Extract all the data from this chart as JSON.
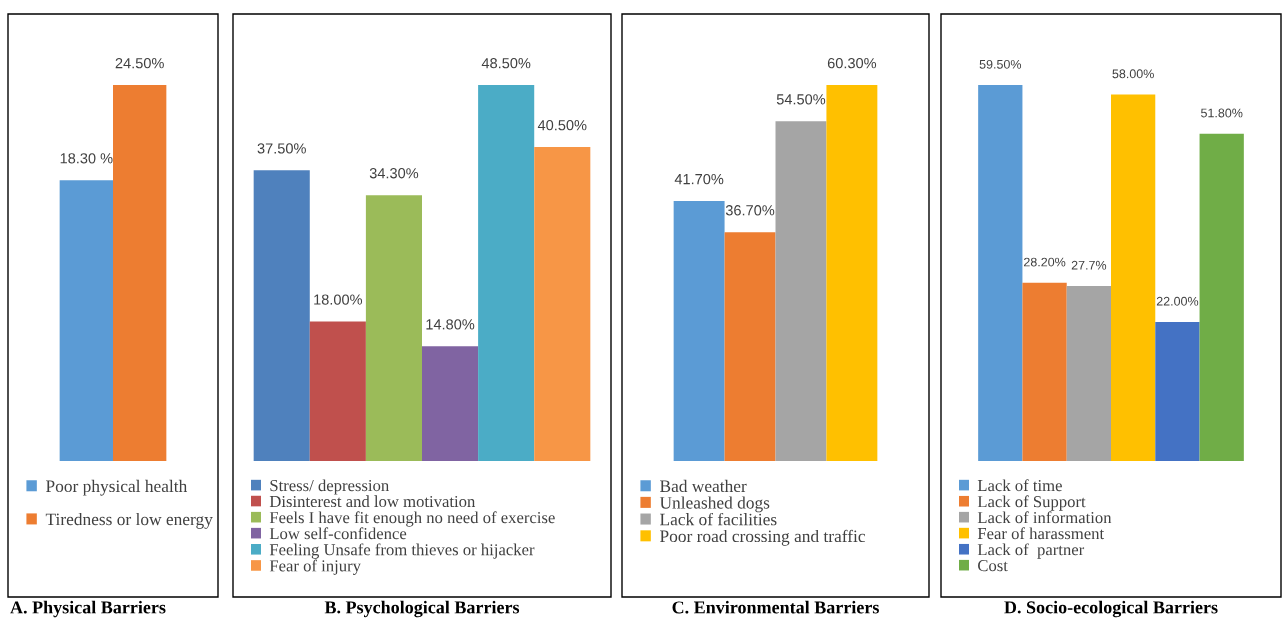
{
  "chart_data": [
    {
      "type": "bar",
      "title": "A. Physical Barriers",
      "categories": [
        null
      ],
      "legend": "bottom",
      "series": [
        {
          "name": "Poor physical health",
          "color": "#5b9bd5",
          "values": [
            18.3
          ],
          "value_labels": [
            "18.30 %"
          ]
        },
        {
          "name": "Tiredness or low energy",
          "color": "#ed7d31",
          "values": [
            24.5
          ],
          "value_labels": [
            "24.50%"
          ]
        }
      ]
    },
    {
      "type": "bar",
      "title": "B. Psychological Barriers",
      "categories": [
        null
      ],
      "legend": "bottom",
      "series": [
        {
          "name": "Stress/ depression",
          "color": "#4f81bd",
          "values": [
            37.5
          ],
          "value_labels": [
            "37.50%"
          ]
        },
        {
          "name": "Disinterest and low motivation",
          "color": "#c0504d",
          "values": [
            18.0
          ],
          "value_labels": [
            "18.00%"
          ]
        },
        {
          "name": "Feels I have fit enough no need of exercise",
          "color": "#9bbb59",
          "values": [
            34.3
          ],
          "value_labels": [
            "34.30%"
          ]
        },
        {
          "name": "Low self-confidence",
          "color": "#8064a2",
          "values": [
            14.8
          ],
          "value_labels": [
            "14.80%"
          ]
        },
        {
          "name": "Feeling Unsafe from thieves or hijacker",
          "color": "#4bacc6",
          "values": [
            48.5
          ],
          "value_labels": [
            "48.50%"
          ]
        },
        {
          "name": "Fear of injury",
          "color": "#f79646",
          "values": [
            40.5
          ],
          "value_labels": [
            "40.50%"
          ]
        }
      ]
    },
    {
      "type": "bar",
      "title": "C. Environmental Barriers",
      "categories": [
        null
      ],
      "legend": "bottom",
      "series": [
        {
          "name": "Bad weather",
          "color": "#5b9bd5",
          "values": [
            41.7
          ],
          "value_labels": [
            "41.70%"
          ]
        },
        {
          "name": "Unleashed dogs",
          "color": "#ed7d31",
          "values": [
            36.7
          ],
          "value_labels": [
            "36.70%"
          ]
        },
        {
          "name": "Lack of facilities",
          "color": "#a5a5a5",
          "values": [
            54.5
          ],
          "value_labels": [
            "54.50%"
          ]
        },
        {
          "name": "Poor road crossing and traffic",
          "color": "#ffc000",
          "values": [
            60.3
          ],
          "value_labels": [
            "60.30%"
          ]
        }
      ]
    },
    {
      "type": "bar",
      "title": "D. Socio-ecological Barriers",
      "categories": [
        null
      ],
      "legend": "bottom",
      "series": [
        {
          "name": "Lack of time",
          "color": "#5b9bd5",
          "values": [
            59.5
          ],
          "value_labels": [
            "59.50%"
          ]
        },
        {
          "name": "Lack of Support",
          "color": "#ed7d31",
          "values": [
            28.2
          ],
          "value_labels": [
            "28.20%"
          ]
        },
        {
          "name": "Lack of information",
          "color": "#a5a5a5",
          "values": [
            27.7
          ],
          "value_labels": [
            "27.7%"
          ]
        },
        {
          "name": "Fear of harassment",
          "color": "#ffc000",
          "values": [
            58.0
          ],
          "value_labels": [
            "58.00%"
          ]
        },
        {
          "name": "Lack of  partner",
          "color": "#4472c4",
          "values": [
            22.0
          ],
          "value_labels": [
            "22.00%"
          ]
        },
        {
          "name": "Cost",
          "color": "#70ad47",
          "values": [
            51.8
          ],
          "value_labels": [
            "51.80%"
          ]
        }
      ]
    }
  ]
}
